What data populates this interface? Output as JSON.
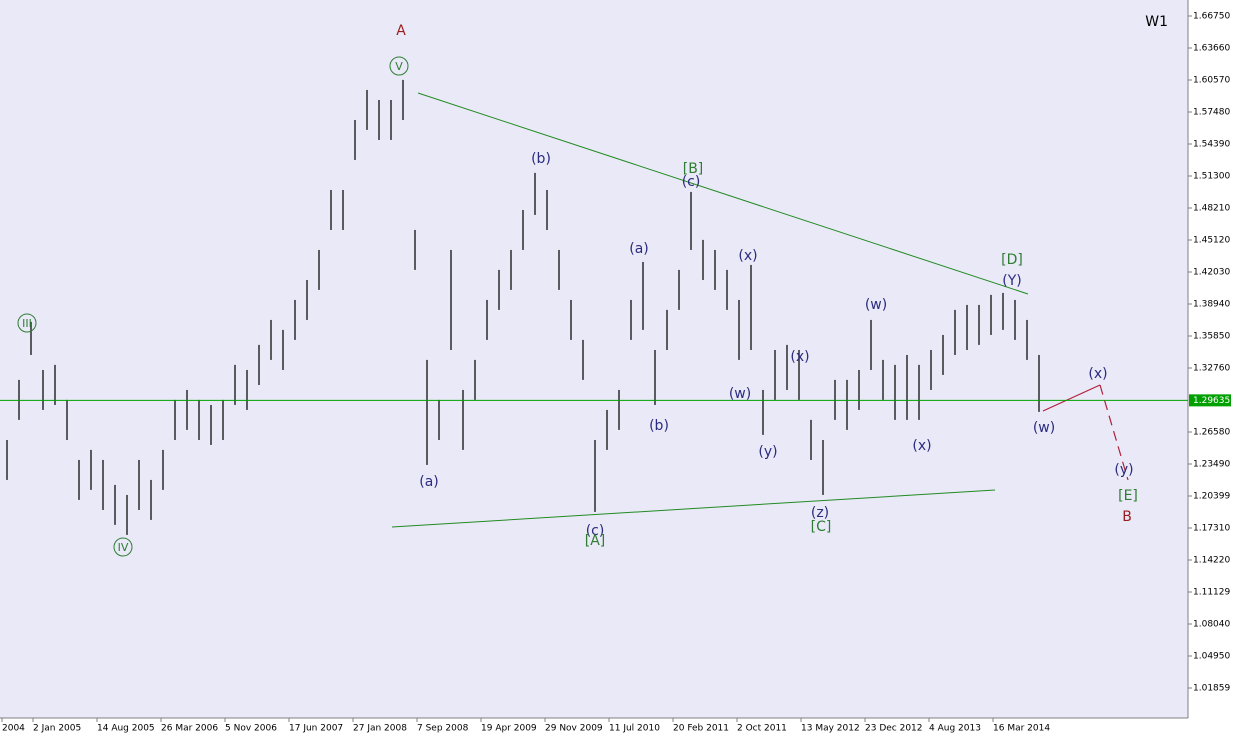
{
  "chart_data": {
    "type": "ohlc",
    "timeframe": "W1",
    "bar_color": "#1e1e1e",
    "background": "#e9e9f7",
    "x": [
      -13,
      -7,
      -1,
      5,
      11,
      17,
      23,
      29,
      35,
      41,
      47,
      53,
      59,
      65,
      71,
      77,
      83,
      89,
      95,
      101,
      107,
      113,
      119,
      125,
      131,
      137,
      143,
      149,
      155,
      161,
      167,
      173,
      179,
      185,
      191,
      197,
      203,
      209,
      215,
      221,
      227,
      233,
      239,
      245,
      251,
      257,
      263,
      269,
      275,
      281,
      287,
      293,
      299,
      305,
      311,
      317,
      323,
      329,
      335,
      341,
      347,
      353,
      359,
      365,
      371,
      377,
      383,
      389,
      395,
      401,
      407,
      413,
      419,
      425,
      431,
      437,
      443,
      449,
      455,
      461,
      467,
      473,
      479,
      485,
      491,
      497,
      503
    ],
    "high": [
      1.2581,
      1.3161,
      1.3721,
      1.3257,
      1.3306,
      1.2968,
      1.2388,
      1.2485,
      1.2388,
      1.2147,
      1.205,
      1.2388,
      1.2195,
      1.2485,
      1.2968,
      1.3064,
      1.2968,
      1.2919,
      1.2968,
      1.3306,
      1.3257,
      1.3499,
      1.374,
      1.3644,
      1.3933,
      1.4126,
      1.4416,
      1.4995,
      1.4995,
      1.5671,
      1.5961,
      1.5864,
      1.5864,
      1.6058,
      1.4609,
      1.3354,
      1.2968,
      1.4416,
      1.3064,
      1.3354,
      1.3933,
      1.4223,
      1.4416,
      1.4802,
      1.516,
      1.4995,
      1.4416,
      1.3933,
      1.3547,
      1.2581,
      1.2871,
      1.3064,
      1.3933,
      1.43,
      1.345,
      1.3837,
      1.4223,
      1.4976,
      1.4513,
      1.4416,
      1.4223,
      1.3933,
      1.4271,
      1.3064,
      1.345,
      1.3499,
      1.345,
      1.2775,
      1.2581,
      1.3161,
      1.3161,
      1.3257,
      1.374,
      1.3354,
      1.3306,
      1.3402,
      1.3306,
      1.345,
      1.3595,
      1.3837,
      1.3885,
      1.3885,
      1.3982,
      1.4001,
      1.3933,
      1.374,
      1.3402
    ],
    "low": [
      1.2195,
      1.2775,
      1.3402,
      1.2871,
      1.2919,
      1.2581,
      1.2002,
      1.2099,
      1.1905,
      1.1761,
      1.1664,
      1.1905,
      1.1809,
      1.2099,
      1.2581,
      1.2678,
      1.2581,
      1.2533,
      1.2581,
      1.2919,
      1.2871,
      1.3112,
      1.3354,
      1.3257,
      1.3547,
      1.374,
      1.403,
      1.4609,
      1.4609,
      1.5285,
      1.5575,
      1.5478,
      1.5478,
      1.5671,
      1.4223,
      1.234,
      1.2581,
      1.345,
      1.2485,
      1.2968,
      1.3547,
      1.3837,
      1.403,
      1.4416,
      1.4754,
      1.4609,
      1.403,
      1.3547,
      1.3161,
      1.1886,
      1.2485,
      1.2678,
      1.3547,
      1.3644,
      1.2919,
      1.345,
      1.3837,
      1.4416,
      1.4126,
      1.403,
      1.3837,
      1.3354,
      1.345,
      1.263,
      1.2968,
      1.3064,
      1.2968,
      1.2388,
      1.205,
      1.2775,
      1.2678,
      1.2871,
      1.3257,
      1.2968,
      1.2775,
      1.2775,
      1.2775,
      1.3064,
      1.3209,
      1.3402,
      1.345,
      1.3499,
      1.3595,
      1.3644,
      1.3547,
      1.3354,
      1.2852
    ],
    "xlim": [
      -16.5,
      577.5
    ],
    "xticks": [
      {
        "value": -15.5,
        "label": "2004"
      },
      {
        "value": 0,
        "label": "2 Jan 2005"
      },
      {
        "value": 32,
        "label": "14 Aug 2005"
      },
      {
        "value": 64,
        "label": "26 Mar 2006"
      },
      {
        "value": 96,
        "label": "5 Nov 2006"
      },
      {
        "value": 128,
        "label": "17 Jun 2007"
      },
      {
        "value": 160,
        "label": "27 Jan 2008"
      },
      {
        "value": 192,
        "label": "7 Sep 2008"
      },
      {
        "value": 224,
        "label": "19 Apr 2009"
      },
      {
        "value": 256,
        "label": "29 Nov 2009"
      },
      {
        "value": 288,
        "label": "11 Jul 2010"
      },
      {
        "value": 320,
        "label": "20 Feb 2011"
      },
      {
        "value": 352,
        "label": "2 Oct 2011"
      },
      {
        "value": 384,
        "label": "13 May 2012"
      },
      {
        "value": 416,
        "label": "23 Dec 2012"
      },
      {
        "value": 448,
        "label": "4 Aug 2013"
      },
      {
        "value": 480,
        "label": "16 Mar 2014"
      }
    ],
    "ylim": [
      0.98962,
      1.68295
    ],
    "yticks": [
      {
        "value": 1.6675,
        "label": "1.66750"
      },
      {
        "value": 1.6366,
        "label": "1.63660"
      },
      {
        "value": 1.6057,
        "label": "1.60570"
      },
      {
        "value": 1.5748,
        "label": "1.57480"
      },
      {
        "value": 1.5439,
        "label": "1.54390"
      },
      {
        "value": 1.513,
        "label": "1.51300"
      },
      {
        "value": 1.4821,
        "label": "1.48210"
      },
      {
        "value": 1.4512,
        "label": "1.45120"
      },
      {
        "value": 1.4203,
        "label": "1.42030"
      },
      {
        "value": 1.3894,
        "label": "1.38940"
      },
      {
        "value": 1.3585,
        "label": "1.35850"
      },
      {
        "value": 1.3276,
        "label": "1.32760"
      },
      {
        "value": 1.2658,
        "label": "1.26580"
      },
      {
        "value": 1.2349,
        "label": "1.23490"
      },
      1.20399,
      {
        "value": 1.1731,
        "label": "1.17310"
      },
      {
        "value": 1.1422,
        "label": "1.14220"
      },
      1.11129,
      {
        "value": 1.0804,
        "label": "1.08040"
      },
      {
        "value": 1.0495,
        "label": "1.04950"
      },
      1.01859
    ],
    "current_price": 1.29635,
    "current_price_color": "#00a000",
    "annotations": [
      {
        "text": "A",
        "color": "#9b1c1c"
      },
      {
        "text": "V",
        "color": "#2e7d32",
        "circled": true
      },
      {
        "text": "III",
        "color": "#2e7d32",
        "circled": true
      },
      {
        "text": "IV",
        "color": "#2e7d32",
        "circled": true
      },
      {
        "text": "(a)",
        "color": "#2b2b7f"
      },
      {
        "text": "(b)",
        "color": "#2b2b7f"
      },
      {
        "text": "[B]",
        "color": "#2e7d32"
      },
      {
        "text": "(c)",
        "color": "#2b2b7f"
      },
      {
        "text": "(a)",
        "color": "#2b2b7f"
      },
      {
        "text": "(b)",
        "color": "#2b2b7f"
      },
      {
        "text": "(x)",
        "color": "#2b2b7f"
      },
      {
        "text": "(x)",
        "color": "#2b2b7f"
      },
      {
        "text": "(w)",
        "color": "#2b2b7f"
      },
      {
        "text": "(y)",
        "color": "#2b2b7f"
      },
      {
        "text": "(c)",
        "color": "#2b2b7f"
      },
      {
        "text": "[A]",
        "color": "#2e7d32"
      },
      {
        "text": "(z)",
        "color": "#2b2b7f"
      },
      {
        "text": "[C]",
        "color": "#2e7d32"
      },
      {
        "text": "(w)",
        "color": "#2b2b7f"
      },
      {
        "text": "(x)",
        "color": "#2b2b7f"
      },
      {
        "text": "[D]",
        "color": "#2e7d32"
      },
      {
        "text": "(Y)",
        "color": "#2b2b7f"
      },
      {
        "text": "(x)",
        "color": "#2b2b7f"
      },
      {
        "text": "(w)",
        "color": "#2b2b7f"
      },
      {
        "text": "(y)",
        "color": "#2b2b7f"
      },
      {
        "text": "[E]",
        "color": "#2e7d32"
      },
      {
        "text": "B",
        "color": "#9b1c1c"
      }
    ]
  }
}
